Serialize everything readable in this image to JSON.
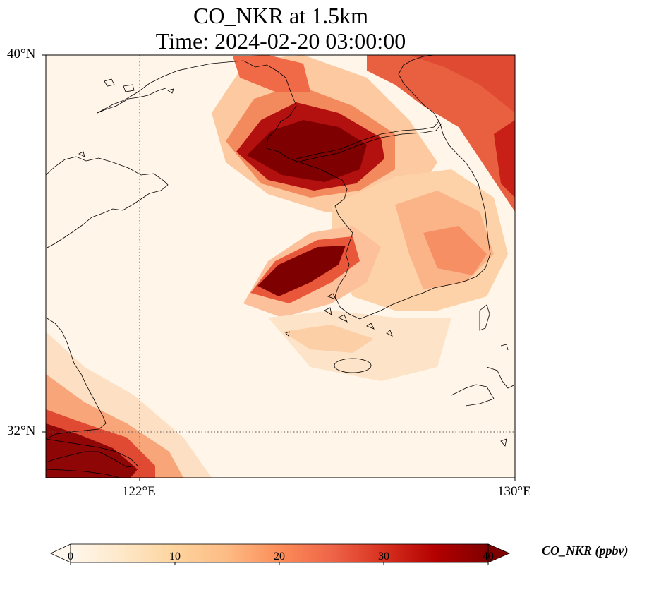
{
  "title": {
    "line1": "CO_NKR at 1.5km",
    "line2": "Time: 2024-02-20 03:00:00"
  },
  "map": {
    "variable": "CO_NKR",
    "level": "1.5km",
    "extent": {
      "lon_min": 120.0,
      "lon_max": 130.0,
      "lat_min": 31.0,
      "lat_max": 40.0
    },
    "gridlines": {
      "lon": [
        122
      ],
      "lat": [
        32
      ],
      "style": "dotted"
    },
    "lat_ticks": [
      {
        "lat": 40,
        "label": "40°N"
      },
      {
        "lat": 32,
        "label": "32°N"
      }
    ],
    "lon_ticks": [
      {
        "lon": 122,
        "label": "122°E"
      },
      {
        "lon": 130,
        "label": "130°E"
      }
    ],
    "colormap": "OrRd",
    "plumes": [
      {
        "lon": 125.6,
        "lat": 38.6,
        "value": 40
      },
      {
        "lon": 124.6,
        "lat": 38.9,
        "value": 36
      },
      {
        "lon": 124.4,
        "lat": 35.5,
        "value": 38
      },
      {
        "lon": 120.6,
        "lat": 31.5,
        "value": 40
      },
      {
        "lon": 129.8,
        "lat": 39.6,
        "value": 30
      },
      {
        "lon": 128.6,
        "lat": 37.6,
        "value": 18
      },
      {
        "lon": 127.6,
        "lat": 35.6,
        "value": 14
      },
      {
        "lon": 126.6,
        "lat": 34.6,
        "value": 12
      }
    ]
  },
  "colorbar": {
    "label": "CO_NKR (ppbv)",
    "min": 0,
    "max": 40,
    "extend": "both",
    "ticks": [
      "0",
      "10",
      "20",
      "30",
      "40"
    ],
    "colors": [
      "#fff7ec",
      "#fee8c8",
      "#fdd49e",
      "#fdbb84",
      "#fc8d59",
      "#ef6548",
      "#d7301f",
      "#b30000",
      "#7f0000"
    ]
  }
}
